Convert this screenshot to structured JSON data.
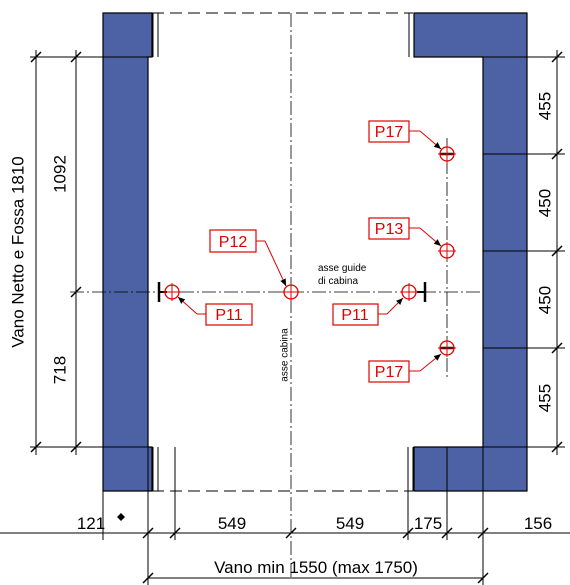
{
  "colors": {
    "wall": "#4d62a5",
    "accent": "#e00000",
    "line": "#000000",
    "background": "#ffffff"
  },
  "vertical_dimensions": {
    "overall_label": "Vano Netto e Fossa 1810",
    "upper_label": "1092",
    "lower_label": "718"
  },
  "right_dimensions": {
    "seg1": "455",
    "seg2": "450",
    "seg3": "450",
    "seg4": "455"
  },
  "bottom_dimensions": {
    "seg_left": "121",
    "seg_a": "549",
    "seg_b": "549",
    "seg_c": "175",
    "seg_right": "156",
    "overall_label": "Vano min 1550 (max 1750)"
  },
  "annotations": {
    "guide_axis": [
      "asse guide",
      "di cabina"
    ],
    "car_axis": "asse cabina"
  },
  "points": {
    "p17_top": "P17",
    "p13": "P13",
    "p12": "P12",
    "p11_left": "P11",
    "p11_right": "P11",
    "p17_bottom": "P17"
  }
}
